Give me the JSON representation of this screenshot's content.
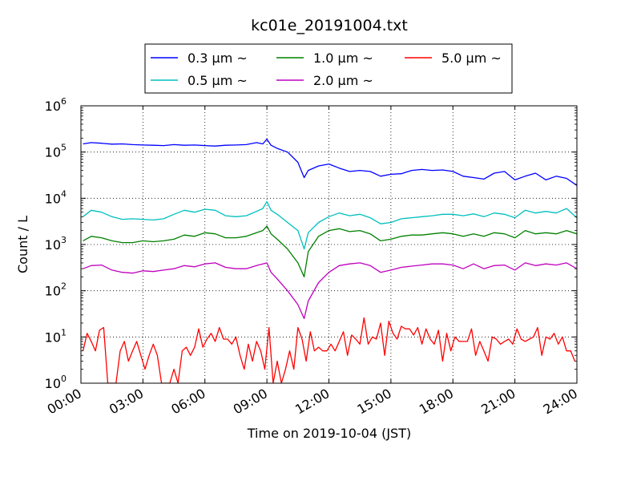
{
  "chart_data": {
    "type": "line",
    "title": "kc01e_20191004.txt",
    "xlabel": "Time on 2019-10-04 (JST)",
    "ylabel": "Count / L",
    "y_scale": "log",
    "xlim": [
      0,
      24
    ],
    "ylim": [
      1,
      1000000
    ],
    "x_tick_labels": [
      "00:00",
      "03:00",
      "06:00",
      "09:00",
      "12:00",
      "15:00",
      "18:00",
      "21:00",
      "24:00"
    ],
    "y_tick_labels": [
      {
        "base": "10",
        "exp": "0"
      },
      {
        "base": "10",
        "exp": "1"
      },
      {
        "base": "10",
        "exp": "2"
      },
      {
        "base": "10",
        "exp": "3"
      },
      {
        "base": "10",
        "exp": "4"
      },
      {
        "base": "10",
        "exp": "5"
      },
      {
        "base": "10",
        "exp": "6"
      }
    ],
    "grid": true,
    "legend_position": "top-center",
    "legend": [
      "0.3 μm ~",
      "0.5 μm ~",
      "1.0 μm ~",
      "2.0 μm ~",
      "5.0 μm ~"
    ],
    "series": [
      {
        "name": "0.3 μm ~",
        "color": "#0000ff",
        "x": [
          0.1,
          0.5,
          1,
          1.5,
          2,
          2.5,
          3,
          3.5,
          4,
          4.5,
          5,
          5.5,
          6,
          6.5,
          7,
          7.5,
          8,
          8.5,
          8.8,
          9,
          9.2,
          9.5,
          10,
          10.5,
          10.8,
          11,
          11.5,
          12,
          12.5,
          13,
          13.5,
          14,
          14.5,
          15,
          15.5,
          16,
          16.5,
          17,
          17.5,
          18,
          18.5,
          19,
          19.5,
          20,
          20.5,
          21,
          21.5,
          22,
          22.5,
          23,
          23.5,
          24
        ],
        "values": [
          150000,
          160000,
          155000,
          148000,
          150000,
          145000,
          142000,
          140000,
          138000,
          145000,
          140000,
          142000,
          138000,
          135000,
          140000,
          142000,
          145000,
          160000,
          150000,
          190000,
          140000,
          120000,
          100000,
          60000,
          28000,
          40000,
          50000,
          55000,
          45000,
          38000,
          40000,
          38000,
          30000,
          33000,
          34000,
          40000,
          42000,
          40000,
          41000,
          38000,
          30000,
          28000,
          26000,
          35000,
          38000,
          25000,
          30000,
          35000,
          25000,
          30000,
          27000,
          19000
        ]
      },
      {
        "name": "0.5 μm ~",
        "color": "#00bfbf",
        "x": [
          0.1,
          0.5,
          1,
          1.5,
          2,
          2.5,
          3,
          3.5,
          4,
          4.5,
          5,
          5.5,
          6,
          6.5,
          7,
          7.5,
          8,
          8.5,
          8.8,
          9,
          9.2,
          9.5,
          10,
          10.5,
          10.8,
          11,
          11.5,
          12,
          12.5,
          13,
          13.5,
          14,
          14.5,
          15,
          15.5,
          16,
          16.5,
          17,
          17.5,
          18,
          18.5,
          19,
          19.5,
          20,
          20.5,
          21,
          21.5,
          22,
          22.5,
          23,
          23.5,
          24
        ],
        "values": [
          4000,
          5500,
          5000,
          4000,
          3500,
          3600,
          3500,
          3400,
          3600,
          4500,
          5500,
          5000,
          5800,
          5500,
          4200,
          4000,
          4200,
          5200,
          6000,
          8500,
          5500,
          4500,
          3000,
          2000,
          800,
          1800,
          3000,
          4000,
          4800,
          4200,
          4500,
          3800,
          2800,
          3000,
          3600,
          3800,
          4000,
          4200,
          4500,
          4500,
          4200,
          4600,
          4000,
          4800,
          4500,
          3800,
          5500,
          4800,
          5200,
          4800,
          6000,
          3800
        ]
      },
      {
        "name": "1.0 μm ~",
        "color": "#008000",
        "x": [
          0.1,
          0.5,
          1,
          1.5,
          2,
          2.5,
          3,
          3.5,
          4,
          4.5,
          5,
          5.5,
          6,
          6.5,
          7,
          7.5,
          8,
          8.5,
          8.8,
          9,
          9.2,
          9.5,
          10,
          10.5,
          10.8,
          11,
          11.5,
          12,
          12.5,
          13,
          13.5,
          14,
          14.5,
          15,
          15.5,
          16,
          16.5,
          17,
          17.5,
          18,
          18.5,
          19,
          19.5,
          20,
          20.5,
          21,
          21.5,
          22,
          22.5,
          23,
          23.5,
          24
        ],
        "values": [
          1200,
          1500,
          1400,
          1200,
          1100,
          1100,
          1200,
          1150,
          1200,
          1300,
          1600,
          1500,
          1800,
          1700,
          1400,
          1400,
          1500,
          1800,
          2000,
          2500,
          1700,
          1300,
          800,
          400,
          200,
          700,
          1500,
          2000,
          2200,
          1900,
          2000,
          1700,
          1200,
          1300,
          1500,
          1600,
          1600,
          1700,
          1800,
          1700,
          1500,
          1700,
          1500,
          1800,
          1700,
          1400,
          2000,
          1700,
          1800,
          1700,
          2000,
          1700
        ]
      },
      {
        "name": "2.0 μm ~",
        "color": "#bf00bf",
        "x": [
          0.1,
          0.5,
          1,
          1.5,
          2,
          2.5,
          3,
          3.5,
          4,
          4.5,
          5,
          5.5,
          6,
          6.5,
          7,
          7.5,
          8,
          8.5,
          8.8,
          9,
          9.2,
          9.5,
          10,
          10.5,
          10.8,
          11,
          11.5,
          12,
          12.5,
          13,
          13.5,
          14,
          14.5,
          15,
          15.5,
          16,
          16.5,
          17,
          17.5,
          18,
          18.5,
          19,
          19.5,
          20,
          20.5,
          21,
          21.5,
          22,
          22.5,
          23,
          23.5,
          24
        ],
        "values": [
          300,
          350,
          360,
          280,
          250,
          240,
          270,
          260,
          280,
          300,
          350,
          330,
          380,
          400,
          320,
          300,
          300,
          350,
          380,
          400,
          250,
          180,
          100,
          50,
          25,
          60,
          150,
          250,
          350,
          380,
          400,
          350,
          250,
          280,
          320,
          340,
          360,
          380,
          380,
          360,
          300,
          380,
          300,
          350,
          360,
          280,
          400,
          350,
          380,
          360,
          400,
          300
        ]
      },
      {
        "name": "5.0 μm ~",
        "color": "#ff0000",
        "x": [
          0.1,
          0.3,
          0.5,
          0.7,
          0.9,
          1.1,
          1.3,
          1.5,
          1.7,
          1.9,
          2.1,
          2.3,
          2.5,
          2.7,
          2.9,
          3.1,
          3.3,
          3.5,
          3.7,
          3.9,
          4.1,
          4.3,
          4.5,
          4.7,
          4.9,
          5.1,
          5.3,
          5.5,
          5.7,
          5.9,
          6.1,
          6.3,
          6.5,
          6.7,
          6.9,
          7.1,
          7.3,
          7.5,
          7.7,
          7.9,
          8.1,
          8.3,
          8.5,
          8.7,
          8.9,
          9.1,
          9.3,
          9.5,
          9.7,
          9.9,
          10.1,
          10.3,
          10.5,
          10.7,
          10.9,
          11.1,
          11.3,
          11.5,
          11.7,
          11.9,
          12.1,
          12.3,
          12.5,
          12.7,
          12.9,
          13.1,
          13.3,
          13.5,
          13.7,
          13.9,
          14.1,
          14.3,
          14.5,
          14.7,
          14.9,
          15.1,
          15.3,
          15.5,
          15.7,
          15.9,
          16.1,
          16.3,
          16.5,
          16.7,
          16.9,
          17.1,
          17.3,
          17.5,
          17.7,
          17.9,
          18.1,
          18.3,
          18.5,
          18.7,
          18.9,
          19.1,
          19.3,
          19.5,
          19.7,
          19.9,
          20.1,
          20.3,
          20.5,
          20.7,
          20.9,
          21.1,
          21.3,
          21.5,
          21.7,
          21.9,
          22.1,
          22.3,
          22.5,
          22.7,
          22.9,
          23.1,
          23.3,
          23.5,
          23.7,
          23.9
        ],
        "values": [
          5,
          12,
          8,
          5,
          14,
          16,
          1,
          1,
          1,
          5,
          8,
          3,
          5,
          8,
          4,
          2,
          4,
          7,
          4,
          1,
          1,
          1,
          2,
          1,
          5,
          6,
          4,
          6,
          15,
          6,
          9,
          12,
          8,
          16,
          9,
          9,
          7,
          10,
          4,
          2,
          7,
          3,
          8,
          5,
          2,
          16,
          1,
          3,
          1,
          2,
          5,
          2,
          16,
          9,
          3,
          13,
          5,
          6,
          5,
          5,
          7,
          5,
          8,
          13,
          4,
          11,
          9,
          7,
          26,
          7,
          10,
          9,
          20,
          4,
          22,
          12,
          9,
          17,
          15,
          15,
          11,
          16,
          7,
          15,
          9,
          7,
          14,
          3,
          12,
          5,
          10,
          8,
          8,
          8,
          15,
          4,
          8,
          5,
          3,
          10,
          9,
          7,
          8,
          9,
          7,
          15,
          9,
          8,
          9,
          10,
          16,
          4,
          10,
          9,
          12,
          7,
          10,
          5,
          5,
          3
        ]
      }
    ]
  }
}
